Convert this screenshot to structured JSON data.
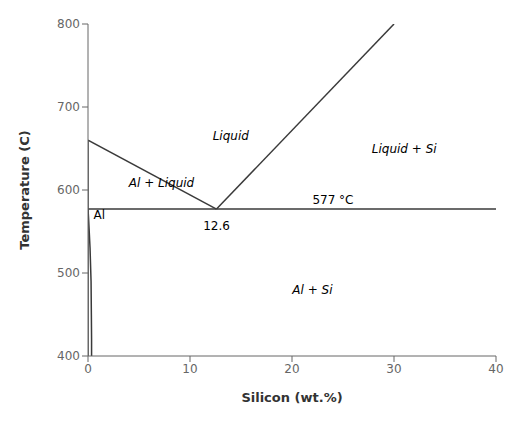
{
  "chart_data": {
    "type": "line",
    "xlabel": "Silicon (wt.%)",
    "ylabel": "Temperature (C)",
    "xlim": [
      0,
      40
    ],
    "ylim": [
      400,
      800
    ],
    "xticks": [
      0,
      10,
      20,
      30,
      40
    ],
    "yticks": [
      400,
      500,
      600,
      700,
      800
    ],
    "grid": false,
    "series": [
      {
        "color": "#3a3a3a",
        "x": [
          0,
          12.6
        ],
        "values": [
          660,
          577
        ]
      },
      {
        "color": "#3a3a3a",
        "x": [
          12.6,
          30
        ],
        "values": [
          577,
          800
        ]
      },
      {
        "color": "#3a3a3a",
        "x": [
          0,
          0
        ],
        "values": [
          660,
          400
        ]
      },
      {
        "color": "#3a3a3a",
        "x": [
          0.35,
          0.35,
          0.33,
          0.3,
          0.2,
          0.1,
          0.05,
          0.0
        ],
        "values": [
          400,
          420,
          450,
          490,
          530,
          555,
          567,
          577
        ]
      },
      {
        "color": "#3a3a3a",
        "x": [
          0,
          40
        ],
        "values": [
          577,
          577
        ]
      }
    ],
    "annotations": [
      {
        "text": "Liquid",
        "x": 14,
        "y": 665
      },
      {
        "text": "Liquid + Si",
        "x": 31,
        "y": 650
      },
      {
        "text": "Al + Liquid",
        "x": 4.0,
        "y": 608
      },
      {
        "text": "Al + Si",
        "x": 22,
        "y": 480
      },
      {
        "text": "Al",
        "x": 0.55,
        "y": 570
      },
      {
        "text": "12.6",
        "x": 12.6,
        "y": 562
      },
      {
        "text": "577 °C",
        "x": 22,
        "y": 583
      }
    ]
  }
}
